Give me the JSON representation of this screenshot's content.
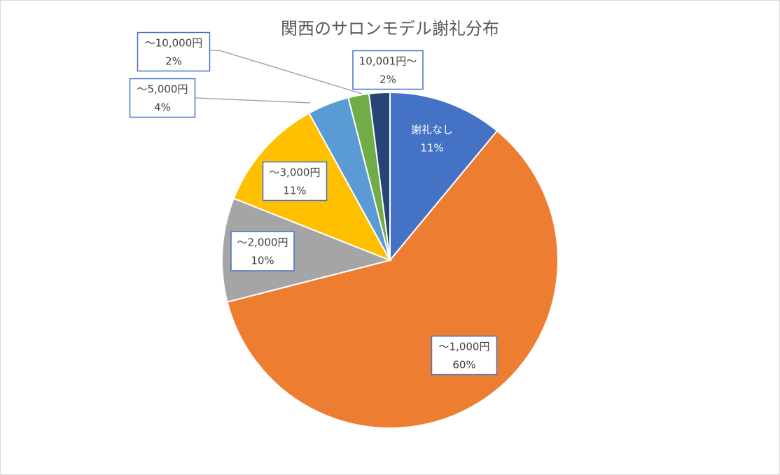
{
  "chart_data": {
    "type": "pie",
    "title": "関西のサロンモデル謝礼分布",
    "categories": [
      "謝礼なし",
      "～1,000円",
      "～2,000円",
      "～3,000円",
      "～5,000円",
      "～10,000円",
      "10,001円～"
    ],
    "values": [
      11,
      60,
      10,
      11,
      4,
      2,
      2
    ],
    "value_labels": [
      "11%",
      "60%",
      "10%",
      "11%",
      "4%",
      "2%",
      "2%"
    ],
    "colors": [
      "#4472c4",
      "#ed7d31",
      "#a5a5a5",
      "#ffc000",
      "#5b9bd5",
      "#70ad47",
      "#264478"
    ]
  }
}
